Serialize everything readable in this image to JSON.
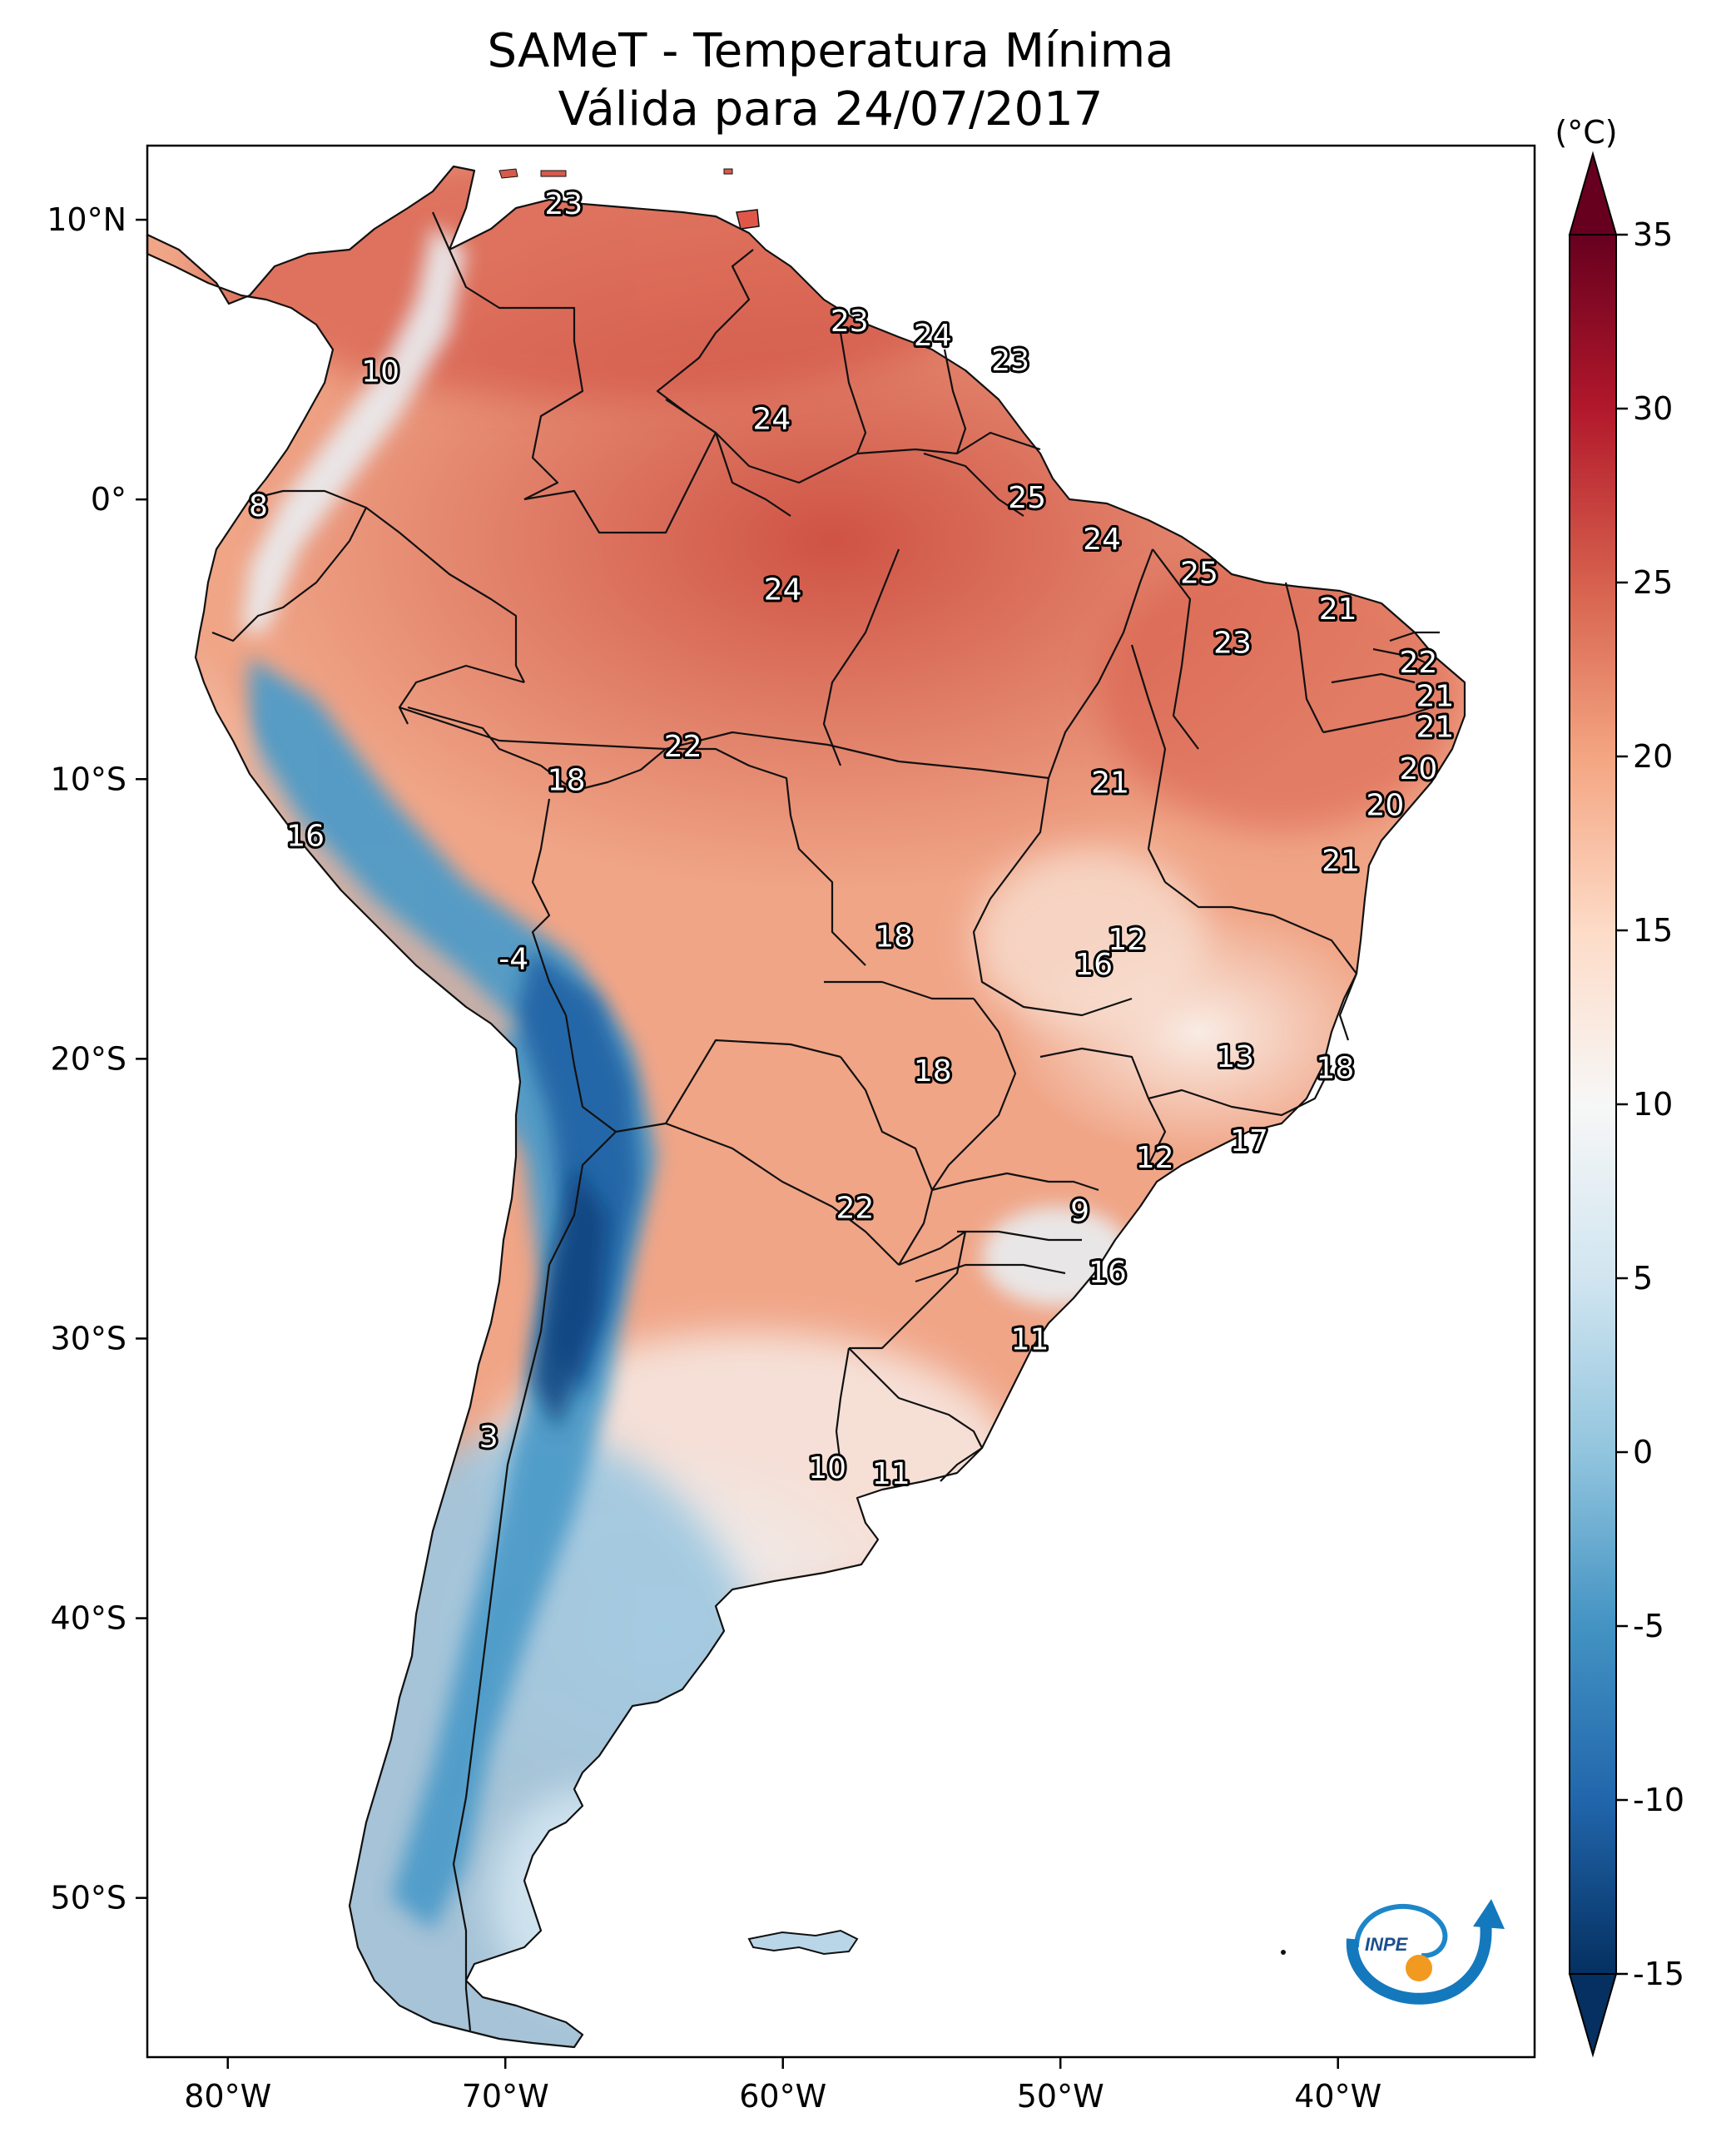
{
  "title": "SAMeT - Temperatura Mínima",
  "subtitle": "Válida para 24/07/2017",
  "logo_text": "INPE",
  "colorbar": {
    "unit": "(°C)",
    "ticks": [
      "35",
      "30",
      "25",
      "20",
      "15",
      "10",
      "5",
      "0",
      "-5",
      "-10",
      "-15"
    ],
    "min": -15,
    "max": 35,
    "colormap": [
      "#053061",
      "#2166ac",
      "#4393c3",
      "#92c5de",
      "#d1e5f0",
      "#f7f7f7",
      "#fddbc7",
      "#f4a582",
      "#d6604d",
      "#b2182b",
      "#67001f"
    ]
  },
  "axes": {
    "lon_labels": [
      "80°W",
      "70°W",
      "60°W",
      "50°W",
      "40°W"
    ],
    "lat_labels": [
      "10°N",
      "0°",
      "10°S",
      "20°S",
      "30°S",
      "40°S",
      "50°S"
    ]
  },
  "temperature_labels": [
    {
      "lon": -67.9,
      "lat": 10.6,
      "value": "23"
    },
    {
      "lon": -74.5,
      "lat": 4.6,
      "value": "10"
    },
    {
      "lon": -78.9,
      "lat": -0.2,
      "value": "8"
    },
    {
      "lon": -57.6,
      "lat": 6.4,
      "value": "23"
    },
    {
      "lon": -54.6,
      "lat": 5.9,
      "value": "24"
    },
    {
      "lon": -51.8,
      "lat": 5.0,
      "value": "23"
    },
    {
      "lon": -60.4,
      "lat": 2.9,
      "value": "24"
    },
    {
      "lon": -51.2,
      "lat": 0.1,
      "value": "25"
    },
    {
      "lon": -48.5,
      "lat": -1.4,
      "value": "24"
    },
    {
      "lon": -45.0,
      "lat": -2.6,
      "value": "25"
    },
    {
      "lon": -40.0,
      "lat": -3.9,
      "value": "21"
    },
    {
      "lon": -60.0,
      "lat": -3.2,
      "value": "24"
    },
    {
      "lon": -43.8,
      "lat": -5.1,
      "value": "23"
    },
    {
      "lon": -37.1,
      "lat": -5.8,
      "value": "22"
    },
    {
      "lon": -36.5,
      "lat": -7.0,
      "value": "21"
    },
    {
      "lon": -36.5,
      "lat": -8.1,
      "value": "21"
    },
    {
      "lon": -37.1,
      "lat": -9.6,
      "value": "20"
    },
    {
      "lon": -38.3,
      "lat": -10.9,
      "value": "20"
    },
    {
      "lon": -39.9,
      "lat": -12.9,
      "value": "21"
    },
    {
      "lon": -63.6,
      "lat": -8.8,
      "value": "22"
    },
    {
      "lon": -67.8,
      "lat": -10.0,
      "value": "18"
    },
    {
      "lon": -48.2,
      "lat": -10.1,
      "value": "21"
    },
    {
      "lon": -77.2,
      "lat": -12.0,
      "value": "16"
    },
    {
      "lon": -56.0,
      "lat": -15.6,
      "value": "18"
    },
    {
      "lon": -47.6,
      "lat": -15.7,
      "value": "12"
    },
    {
      "lon": -48.8,
      "lat": -16.6,
      "value": "16"
    },
    {
      "lon": -69.7,
      "lat": -16.4,
      "value": "-4"
    },
    {
      "lon": -43.7,
      "lat": -19.9,
      "value": "13"
    },
    {
      "lon": -40.1,
      "lat": -20.3,
      "value": "18"
    },
    {
      "lon": -54.6,
      "lat": -20.4,
      "value": "18"
    },
    {
      "lon": -43.2,
      "lat": -22.9,
      "value": "17"
    },
    {
      "lon": -46.6,
      "lat": -23.5,
      "value": "12"
    },
    {
      "lon": -57.4,
      "lat": -25.3,
      "value": "22"
    },
    {
      "lon": -49.3,
      "lat": -25.4,
      "value": "9"
    },
    {
      "lon": -48.3,
      "lat": -27.6,
      "value": "16"
    },
    {
      "lon": -51.1,
      "lat": -30.0,
      "value": "11"
    },
    {
      "lon": -70.6,
      "lat": -33.5,
      "value": "3"
    },
    {
      "lon": -58.4,
      "lat": -34.6,
      "value": "10"
    },
    {
      "lon": -56.1,
      "lat": -34.8,
      "value": "11"
    }
  ]
}
